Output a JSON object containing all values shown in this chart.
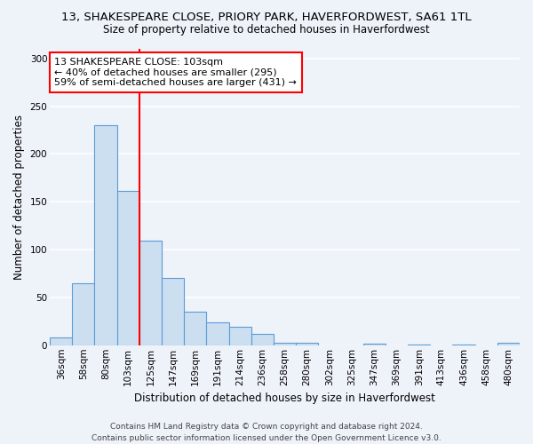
{
  "title": "13, SHAKESPEARE CLOSE, PRIORY PARK, HAVERFORDWEST, SA61 1TL",
  "subtitle": "Size of property relative to detached houses in Haverfordwest",
  "xlabel": "Distribution of detached houses by size in Haverfordwest",
  "ylabel": "Number of detached properties",
  "categories": [
    "36sqm",
    "58sqm",
    "80sqm",
    "103sqm",
    "125sqm",
    "147sqm",
    "169sqm",
    "191sqm",
    "214sqm",
    "236sqm",
    "258sqm",
    "280sqm",
    "302sqm",
    "325sqm",
    "347sqm",
    "369sqm",
    "391sqm",
    "413sqm",
    "436sqm",
    "458sqm",
    "480sqm"
  ],
  "values": [
    8,
    65,
    230,
    161,
    109,
    70,
    35,
    24,
    19,
    12,
    3,
    3,
    0,
    0,
    2,
    0,
    1,
    0,
    1,
    0,
    3
  ],
  "bar_color": "#ccdff0",
  "bar_edge_color": "#5b9bd5",
  "red_line_index": 3,
  "annotation_text": "13 SHAKESPEARE CLOSE: 103sqm\n← 40% of detached houses are smaller (295)\n59% of semi-detached houses are larger (431) →",
  "annotation_box_color": "white",
  "annotation_box_edge": "red",
  "ylim": [
    0,
    310
  ],
  "yticks": [
    0,
    50,
    100,
    150,
    200,
    250,
    300
  ],
  "footer_text": "Contains HM Land Registry data © Crown copyright and database right 2024.\nContains public sector information licensed under the Open Government Licence v3.0.",
  "bg_color": "#eef2f9",
  "grid_color": "white",
  "title_fontsize": 9.5,
  "subtitle_fontsize": 8.5,
  "xlabel_fontsize": 8.5,
  "ylabel_fontsize": 8.5,
  "tick_fontsize": 7.5,
  "annotation_fontsize": 8,
  "footer_fontsize": 6.5
}
